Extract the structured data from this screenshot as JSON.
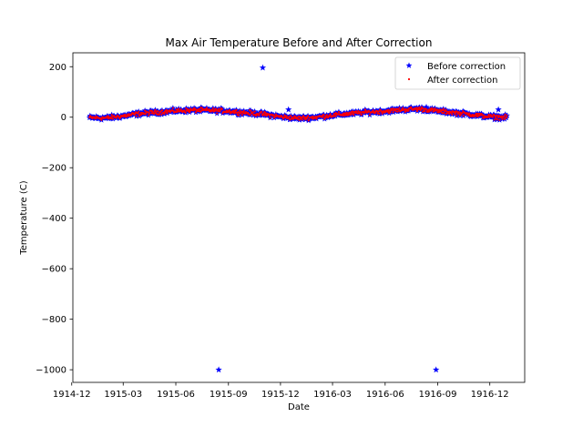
{
  "chart_data": {
    "type": "scatter",
    "title": "Max Air Temperature Before and After Correction",
    "xlabel": "Date",
    "ylabel": "Temperature (C)",
    "xlim": [
      "1914-12-03",
      "1917-01-31"
    ],
    "ylim": [
      -1050,
      255
    ],
    "x_ticks": [
      "1914-12",
      "1915-03",
      "1915-06",
      "1915-09",
      "1915-12",
      "1916-03",
      "1916-06",
      "1916-09",
      "1916-12"
    ],
    "y_ticks": [
      200,
      0,
      -200,
      -400,
      -600,
      -800,
      -1000
    ],
    "y_tick_labels": [
      "200",
      "0",
      "−200",
      "−400",
      "−600",
      "−800",
      "−1000"
    ],
    "legend_position": "top-right",
    "grid": false,
    "series": [
      {
        "name": "Before correction",
        "marker": "star",
        "color": "#0000ff",
        "outliers": [
          {
            "x": "1915-08-15",
            "y": -1000
          },
          {
            "x": "1915-10-31",
            "y": 196
          },
          {
            "x": "1915-12-15",
            "y": 30
          },
          {
            "x": "1916-08-12",
            "y": 40
          },
          {
            "x": "1916-08-29",
            "y": -1000
          },
          {
            "x": "1916-12-16",
            "y": 30
          }
        ]
      },
      {
        "name": "After correction",
        "marker": "point",
        "color": "#ff0000"
      }
    ],
    "daily_series": {
      "start": "1915-01-01",
      "end": "1916-12-31",
      "anchors": [
        {
          "x": "1915-01-01",
          "y": -2
        },
        {
          "x": "1915-02-01",
          "y": -3
        },
        {
          "x": "1915-03-01",
          "y": 5
        },
        {
          "x": "1915-04-01",
          "y": 15
        },
        {
          "x": "1915-05-01",
          "y": 20
        },
        {
          "x": "1915-06-01",
          "y": 25
        },
        {
          "x": "1915-07-01",
          "y": 28
        },
        {
          "x": "1915-08-01",
          "y": 27
        },
        {
          "x": "1915-09-01",
          "y": 24
        },
        {
          "x": "1915-10-01",
          "y": 18
        },
        {
          "x": "1915-11-01",
          "y": 12
        },
        {
          "x": "1915-12-01",
          "y": 2
        },
        {
          "x": "1916-01-01",
          "y": -4
        },
        {
          "x": "1916-02-01",
          "y": 0
        },
        {
          "x": "1916-03-01",
          "y": 8
        },
        {
          "x": "1916-04-01",
          "y": 14
        },
        {
          "x": "1916-05-01",
          "y": 20
        },
        {
          "x": "1916-06-01",
          "y": 24
        },
        {
          "x": "1916-07-01",
          "y": 30
        },
        {
          "x": "1916-08-01",
          "y": 33
        },
        {
          "x": "1916-09-01",
          "y": 25
        },
        {
          "x": "1916-10-01",
          "y": 18
        },
        {
          "x": "1916-11-01",
          "y": 10
        },
        {
          "x": "1916-12-01",
          "y": 2
        },
        {
          "x": "1916-12-31",
          "y": -1
        }
      ]
    }
  }
}
